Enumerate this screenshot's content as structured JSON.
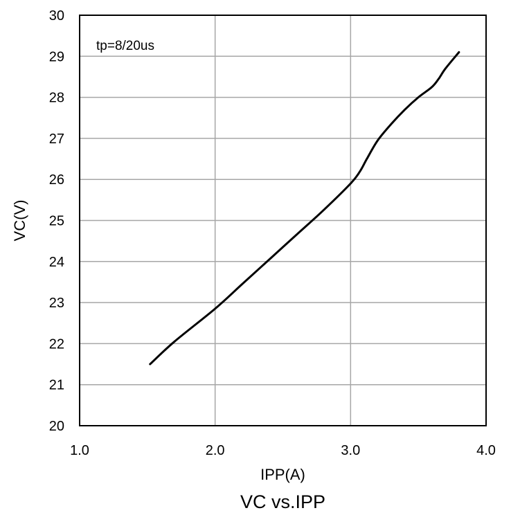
{
  "chart_data": {
    "type": "line",
    "title": "VC vs.IPP",
    "xlabel": "IPP(A)",
    "ylabel": "VC(V)",
    "annotation": "tp=8/20us",
    "xlim": [
      1.0,
      4.0
    ],
    "ylim": [
      20,
      30
    ],
    "xticks": [
      "1.0",
      "2.0",
      "3.0",
      "4.0"
    ],
    "yticks": [
      "20",
      "21",
      "22",
      "23",
      "24",
      "25",
      "26",
      "27",
      "28",
      "29",
      "30"
    ],
    "grid": true,
    "line_color": "#000000",
    "grid_color": "#a6a6a6",
    "series": [
      {
        "x": [
          1.52,
          1.7,
          2.0,
          2.2,
          2.4,
          2.6,
          2.8,
          3.0,
          3.07,
          3.12,
          3.2,
          3.3,
          3.4,
          3.5,
          3.6,
          3.65,
          3.7,
          3.8
        ],
        "y": [
          21.5,
          22.05,
          22.85,
          23.45,
          24.05,
          24.65,
          25.25,
          25.9,
          26.2,
          26.5,
          26.95,
          27.35,
          27.7,
          28.0,
          28.25,
          28.45,
          28.7,
          29.1
        ]
      }
    ]
  }
}
